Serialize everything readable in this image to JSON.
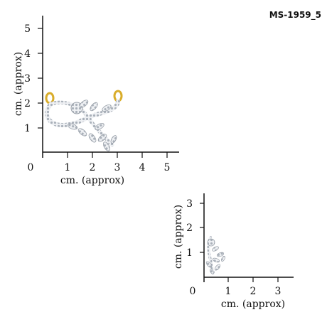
{
  "product_code": "MS-1959_5",
  "large_scale": {
    "y_ticks": [
      "1",
      "2",
      "3",
      "4",
      "5"
    ],
    "x_ticks": [
      "1",
      "2",
      "3",
      "4",
      "5"
    ],
    "origin": "0",
    "y_label": "cm. (approx)",
    "x_label": "cm. (approx)"
  },
  "small_scale": {
    "y_ticks": [
      "1",
      "2",
      "3"
    ],
    "x_ticks": [
      "1",
      "2",
      "3"
    ],
    "origin": "0",
    "y_label": "cm. (approx)",
    "x_label": "cm. (approx)"
  },
  "colors": {
    "gold": "#d9ad2b",
    "silver": "#b9bfc7",
    "axis": "#111111"
  },
  "jewel_images": [
    "pendant-large-image",
    "pendant-small-image"
  ]
}
